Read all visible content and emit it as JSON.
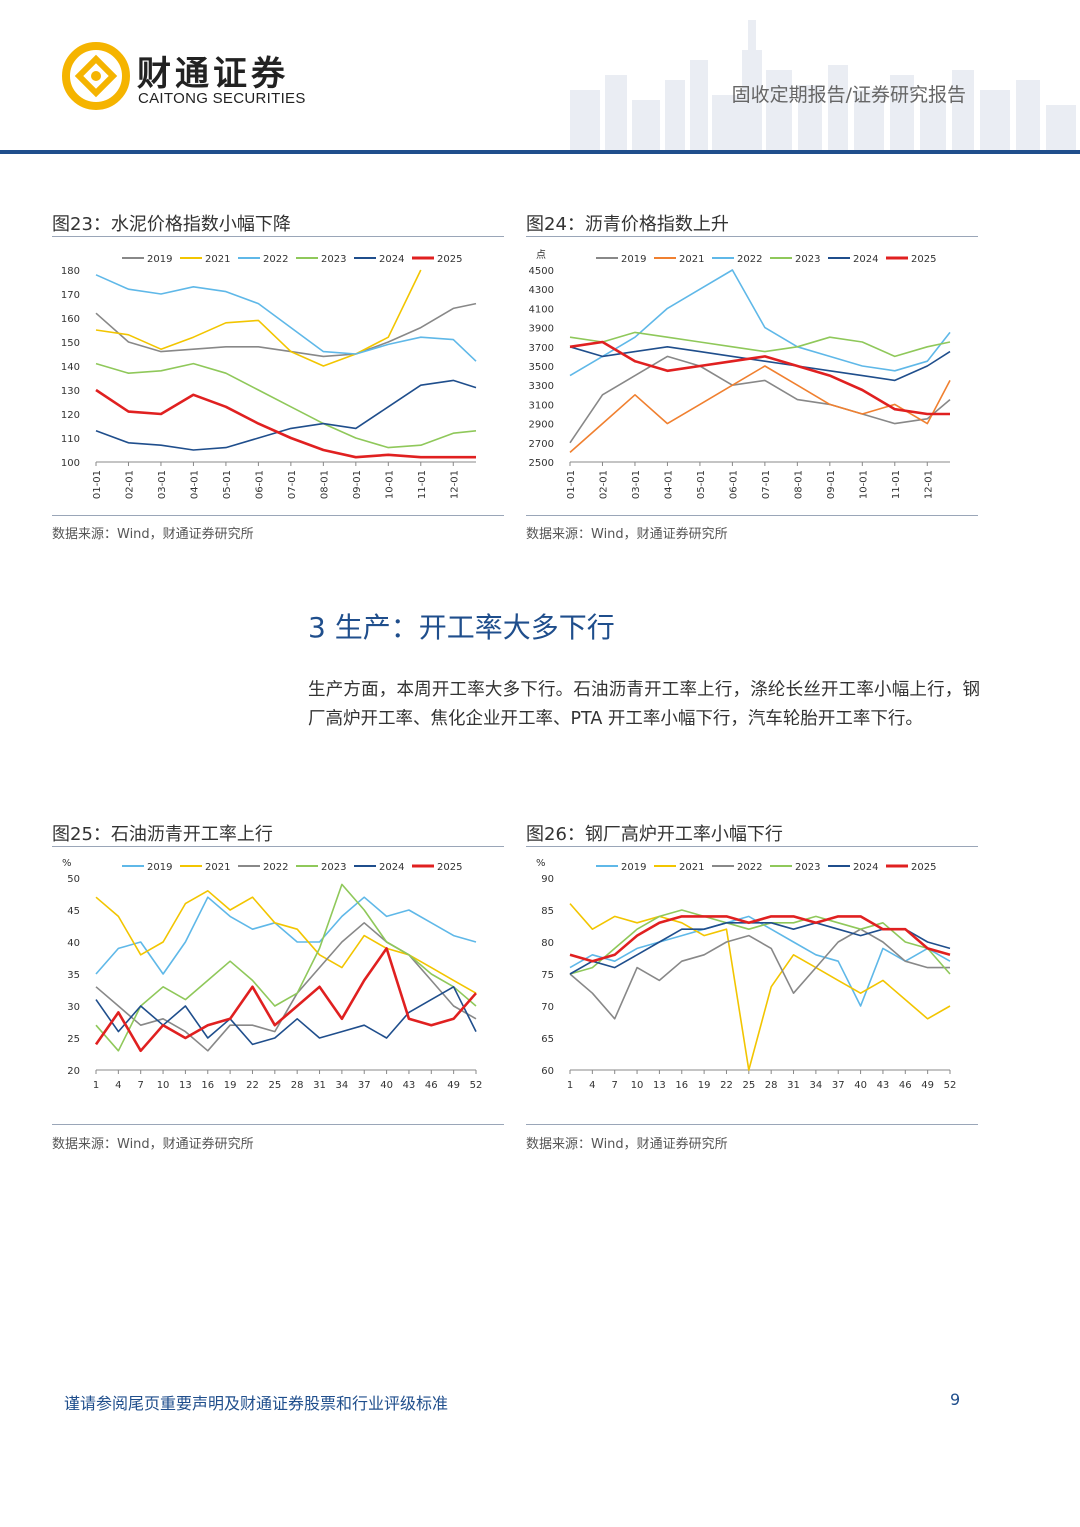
{
  "header": {
    "logo_cn": "财通证券",
    "logo_en": "CAITONG SECURITIES",
    "report_type": "固收定期报告/证券研究报告",
    "brand_color": "#1f4e8c",
    "logo_color": "#f5b400"
  },
  "figures": [
    {
      "title": "图23：水泥价格指数小幅下降",
      "source": "数据来源：Wind，财通证券研究所",
      "chart_data": {
        "type": "line",
        "ylim": [
          100,
          180
        ],
        "yticks": [
          "180",
          "170",
          "160",
          "150",
          "140",
          "130",
          "120",
          "110",
          "100"
        ],
        "xticks": [
          "01-01",
          "02-01",
          "03-01",
          "04-01",
          "05-01",
          "06-01",
          "07-01",
          "08-01",
          "09-01",
          "10-01",
          "11-01",
          "12-01"
        ],
        "x": [
          1,
          2,
          3,
          4,
          5,
          6,
          7,
          8,
          9,
          10,
          11,
          12,
          12.7
        ],
        "series": [
          {
            "name": "2019",
            "color": "#888888",
            "values": [
              162,
              150,
              146,
              147,
              148,
              148,
              146,
              144,
              145,
              150,
              156,
              164,
              166
            ]
          },
          {
            "name": "2021",
            "color": "#f2c500",
            "values": [
              155,
              153,
              147,
              152,
              158,
              159,
              146,
              140,
              145,
              152,
              180,
              null,
              null
            ]
          },
          {
            "name": "2022",
            "color": "#5fb8e8",
            "values": [
              178,
              172,
              170,
              173,
              171,
              166,
              156,
              146,
              145,
              149,
              152,
              151,
              142
            ]
          },
          {
            "name": "2023",
            "color": "#8fc85a",
            "values": [
              141,
              137,
              138,
              141,
              137,
              130,
              123,
              116,
              110,
              106,
              107,
              112,
              113
            ]
          },
          {
            "name": "2024",
            "color": "#1f4e8c",
            "values": [
              113,
              108,
              107,
              105,
              106,
              110,
              114,
              116,
              114,
              123,
              132,
              134,
              131
            ]
          },
          {
            "name": "2025",
            "color": "#e02020",
            "values": [
              130,
              121,
              120,
              128,
              123,
              116,
              110,
              105,
              102,
              103,
              102,
              102,
              102
            ]
          }
        ]
      }
    },
    {
      "title": "图24：沥青价格指数上升",
      "source": "数据来源：Wind，财通证券研究所",
      "chart_data": {
        "type": "line",
        "yunit": "点",
        "ylim": [
          2500,
          4500
        ],
        "yticks": [
          "4500",
          "4300",
          "4100",
          "3900",
          "3700",
          "3500",
          "3300",
          "3100",
          "2900",
          "2700",
          "2500"
        ],
        "xticks": [
          "01-01",
          "02-01",
          "03-01",
          "04-01",
          "05-01",
          "06-01",
          "07-01",
          "08-01",
          "09-01",
          "10-01",
          "11-01",
          "12-01"
        ],
        "x": [
          1,
          2,
          3,
          4,
          5,
          6,
          7,
          8,
          9,
          10,
          11,
          12,
          12.7
        ],
        "series": [
          {
            "name": "2019",
            "color": "#888888",
            "values": [
              2700,
              3200,
              3400,
              3600,
              3500,
              3300,
              3350,
              3150,
              3100,
              3000,
              2900,
              2950,
              3150
            ]
          },
          {
            "name": "2021",
            "color": "#f08030",
            "values": [
              2600,
              2900,
              3200,
              2900,
              3100,
              3300,
              3500,
              3300,
              3100,
              3000,
              3100,
              2900,
              3350
            ]
          },
          {
            "name": "2022",
            "color": "#5fb8e8",
            "values": [
              3400,
              3600,
              3800,
              4100,
              4300,
              4500,
              3900,
              3700,
              3600,
              3500,
              3450,
              3550,
              3850
            ]
          },
          {
            "name": "2023",
            "color": "#8fc85a",
            "values": [
              3800,
              3750,
              3850,
              3800,
              3750,
              3700,
              3650,
              3700,
              3800,
              3750,
              3600,
              3700,
              3750
            ]
          },
          {
            "name": "2024",
            "color": "#1f4e8c",
            "values": [
              3700,
              3600,
              3650,
              3700,
              3650,
              3600,
              3550,
              3500,
              3450,
              3400,
              3350,
              3500,
              3650
            ]
          },
          {
            "name": "2025",
            "color": "#e02020",
            "values": [
              3700,
              3750,
              3550,
              3450,
              3500,
              3550,
              3600,
              3500,
              3400,
              3250,
              3050,
              3000,
              3000
            ]
          }
        ]
      }
    },
    {
      "title": "图25：石油沥青开工率上行",
      "source": "数据来源：Wind，财通证券研究所",
      "chart_data": {
        "type": "line",
        "yunit": "%",
        "ylim": [
          20,
          50
        ],
        "yticks": [
          "50",
          "45",
          "40",
          "35",
          "30",
          "25",
          "20"
        ],
        "xticks": [
          "1",
          "4",
          "7",
          "10",
          "13",
          "16",
          "19",
          "22",
          "25",
          "28",
          "31",
          "34",
          "37",
          "40",
          "43",
          "46",
          "49",
          "52"
        ],
        "x": [
          1,
          4,
          7,
          10,
          13,
          16,
          19,
          22,
          25,
          28,
          31,
          34,
          37,
          40,
          43,
          46,
          49,
          52
        ],
        "series": [
          {
            "name": "2019",
            "color": "#5fb8e8",
            "values": [
              35,
              39,
              40,
              35,
              40,
              47,
              44,
              42,
              43,
              40,
              40,
              44,
              47,
              44,
              45,
              43,
              41,
              40
            ]
          },
          {
            "name": "2021",
            "color": "#f2c500",
            "values": [
              47,
              44,
              38,
              40,
              46,
              48,
              45,
              47,
              43,
              42,
              38,
              36,
              41,
              39,
              38,
              36,
              34,
              32
            ]
          },
          {
            "name": "2022",
            "color": "#888888",
            "values": [
              33,
              30,
              27,
              28,
              26,
              23,
              27,
              27,
              26,
              32,
              36,
              40,
              43,
              40,
              38,
              34,
              30,
              28
            ]
          },
          {
            "name": "2023",
            "color": "#8fc85a",
            "values": [
              27,
              23,
              30,
              33,
              31,
              34,
              37,
              34,
              30,
              32,
              39,
              49,
              45,
              40,
              38,
              35,
              33,
              30
            ]
          },
          {
            "name": "2024",
            "color": "#1f4e8c",
            "values": [
              31,
              26,
              30,
              27,
              30,
              25,
              28,
              24,
              25,
              28,
              25,
              26,
              27,
              25,
              29,
              31,
              33,
              26
            ]
          },
          {
            "name": "2025",
            "color": "#e02020",
            "values": [
              24,
              29,
              23,
              27,
              25,
              27,
              28,
              33,
              27,
              30,
              33,
              28,
              34,
              39,
              28,
              27,
              28,
              32
            ]
          }
        ]
      }
    },
    {
      "title": "图26：钢厂高炉开工率小幅下行",
      "source": "数据来源：Wind，财通证券研究所",
      "chart_data": {
        "type": "line",
        "yunit": "%",
        "ylim": [
          60,
          90
        ],
        "yticks": [
          "90",
          "85",
          "80",
          "75",
          "70",
          "65",
          "60"
        ],
        "xticks": [
          "1",
          "4",
          "7",
          "10",
          "13",
          "16",
          "19",
          "22",
          "25",
          "28",
          "31",
          "34",
          "37",
          "40",
          "43",
          "46",
          "49",
          "52"
        ],
        "x": [
          1,
          4,
          7,
          10,
          13,
          16,
          19,
          22,
          25,
          28,
          31,
          34,
          37,
          40,
          43,
          46,
          49,
          52
        ],
        "series": [
          {
            "name": "2019",
            "color": "#5fb8e8",
            "values": [
              76,
              78,
              77,
              79,
              80,
              81,
              82,
              83,
              84,
              82,
              80,
              78,
              77,
              70,
              79,
              77,
              79,
              77
            ]
          },
          {
            "name": "2021",
            "color": "#f2c500",
            "values": [
              86,
              82,
              84,
              83,
              84,
              83,
              81,
              82,
              60,
              73,
              78,
              76,
              74,
              72,
              74,
              71,
              68,
              70
            ]
          },
          {
            "name": "2022",
            "color": "#888888",
            "values": [
              75,
              72,
              68,
              76,
              74,
              77,
              78,
              80,
              81,
              79,
              72,
              76,
              80,
              82,
              80,
              77,
              76,
              76
            ]
          },
          {
            "name": "2023",
            "color": "#8fc85a",
            "values": [
              75,
              76,
              79,
              82,
              84,
              85,
              84,
              83,
              82,
              83,
              83,
              84,
              83,
              82,
              83,
              80,
              79,
              75
            ]
          },
          {
            "name": "2024",
            "color": "#1f4e8c",
            "values": [
              75,
              77,
              76,
              78,
              80,
              82,
              82,
              83,
              83,
              83,
              82,
              83,
              82,
              81,
              82,
              82,
              80,
              79
            ]
          },
          {
            "name": "2025",
            "color": "#e02020",
            "values": [
              78,
              77,
              78,
              81,
              83,
              84,
              84,
              84,
              83,
              84,
              84,
              83,
              84,
              84,
              82,
              82,
              79,
              78
            ]
          }
        ]
      }
    }
  ],
  "section": {
    "title": "3  生产：开工率大多下行",
    "paragraph": "生产方面，本周开工率大多下行。石油沥青开工率上行，涤纶长丝开工率小幅上行，钢厂高炉开工率、焦化企业开工率、PTA 开工率小幅下行，汽车轮胎开工率下行。"
  },
  "footer": {
    "note": "谨请参阅尾页重要声明及财通证券股票和行业评级标准",
    "page": "9"
  }
}
